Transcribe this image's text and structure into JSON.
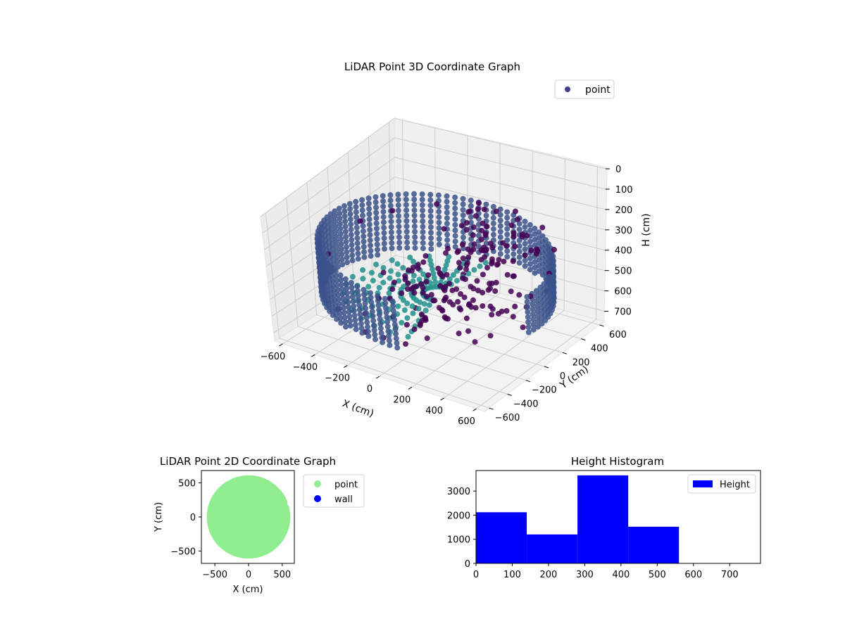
{
  "colors": {
    "point3d_dark": "#440154",
    "point3d_mid": "#3b528b",
    "point3d_light": "#21918c",
    "legend_point3d": "#3e3f8f",
    "point2d": "#90ee90",
    "wall": "#0000ff",
    "hist_bar": "#0000ff"
  },
  "chart_data": [
    {
      "type": "scatter",
      "projection": "3d",
      "title": "LiDAR Point 3D Coordinate Graph",
      "xlabel": "X (cm)",
      "ylabel": "Y (cm)",
      "zlabel": "H (cm)",
      "xticks": [
        "−600",
        "−400",
        "−200",
        "0",
        "200",
        "400",
        "600"
      ],
      "yticks": [
        "−600",
        "−400",
        "−200",
        "0",
        "200",
        "400",
        "600"
      ],
      "zticks": [
        "0",
        "100",
        "200",
        "300",
        "400",
        "500",
        "600",
        "700"
      ],
      "xlim": [
        -650,
        650
      ],
      "ylim": [
        -650,
        650
      ],
      "zlim": [
        0,
        750
      ],
      "zaxis_inverted": true,
      "grid": true,
      "legend": {
        "placement": "upper right",
        "entries": [
          "point"
        ]
      },
      "series": [
        {
          "name": "point",
          "shape": "ring of points, wall radius ~620 cm, heights ~0–560 cm, open towards +X/−Y",
          "points": [
            [
              -560,
              150,
              330
            ],
            [
              -470,
              330,
              320
            ],
            [
              -300,
              500,
              310
            ],
            [
              -100,
              600,
              300
            ],
            [
              120,
              610,
              300
            ],
            [
              330,
              540,
              310
            ],
            [
              500,
              380,
              320
            ],
            [
              590,
              180,
              340
            ],
            [
              620,
              -60,
              350
            ],
            [
              560,
              -290,
              360
            ],
            [
              -600,
              -120,
              420
            ],
            [
              -500,
              -330,
              470
            ],
            [
              -320,
              -500,
              510
            ],
            [
              -100,
              -590,
              540
            ],
            [
              130,
              -560,
              550
            ],
            [
              -200,
              0,
              480
            ],
            [
              0,
              100,
              460
            ],
            [
              150,
              -50,
              440
            ],
            [
              100,
              -300,
              520
            ],
            [
              300,
              -200,
              500
            ],
            [
              -50,
              -150,
              560
            ],
            [
              250,
              150,
              250
            ],
            [
              50,
              350,
              200
            ],
            [
              350,
              0,
              260
            ],
            [
              400,
              -350,
              480
            ],
            [
              200,
              -450,
              540
            ]
          ]
        }
      ]
    },
    {
      "type": "scatter",
      "title": "LiDAR Point 2D Coordinate Graph",
      "xlabel": "X (cm)",
      "ylabel": "Y (cm)",
      "xticks": [
        "−500",
        "0",
        "500"
      ],
      "yticks": [
        "−500",
        "0",
        "500"
      ],
      "xlim": [
        -700,
        680
      ],
      "ylim": [
        -680,
        680
      ],
      "legend": {
        "placement": "outside right",
        "entries": [
          "point",
          "wall"
        ]
      },
      "series": [
        {
          "name": "point",
          "shape": "filled disc, radius ~620 cm, notched on the +X side"
        },
        {
          "name": "wall",
          "points": []
        }
      ]
    },
    {
      "type": "bar",
      "subtype": "histogram",
      "title": "Height Histogram",
      "xticks": [
        "0",
        "100",
        "200",
        "300",
        "400",
        "500",
        "600",
        "700"
      ],
      "yticks": [
        "0",
        "1000",
        "2000",
        "3000"
      ],
      "xlim": [
        0,
        785
      ],
      "ylim": [
        0,
        3850
      ],
      "legend": {
        "placement": "upper right",
        "entries": [
          "Height"
        ]
      },
      "bins": [
        [
          0,
          140
        ],
        [
          140,
          280
        ],
        [
          280,
          420
        ],
        [
          420,
          560
        ]
      ],
      "values": [
        2120,
        1200,
        3650,
        1520
      ],
      "series": [
        {
          "name": "Height",
          "values": [
            2120,
            1200,
            3650,
            1520
          ]
        }
      ]
    }
  ]
}
